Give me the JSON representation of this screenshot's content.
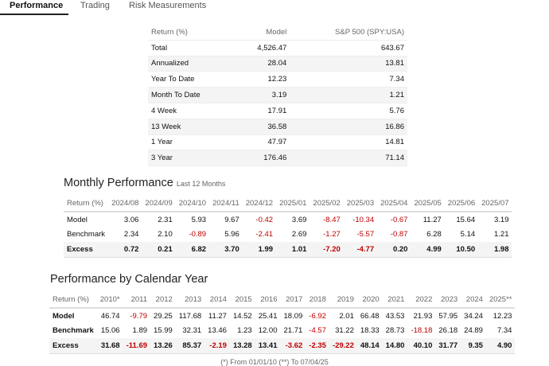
{
  "tabs": [
    "Performance",
    "Trading",
    "Risk Measurements"
  ],
  "summary": {
    "header": [
      "Return (%)",
      "Model",
      "S&P 500 (SPY:USA)"
    ],
    "rows": [
      [
        "Total",
        "4,526.47",
        "643.67"
      ],
      [
        "Annualized",
        "28.04",
        "13.81"
      ],
      [
        "Year To Date",
        "12.23",
        "7.34"
      ],
      [
        "Month To Date",
        "3.19",
        "1.21"
      ],
      [
        "4 Week",
        "17.91",
        "5.76"
      ],
      [
        "13 Week",
        "36.58",
        "16.86"
      ],
      [
        "1 Year",
        "47.97",
        "14.81"
      ],
      [
        "3 Year",
        "176.46",
        "71.14"
      ]
    ]
  },
  "monthly": {
    "title": "Monthly Performance",
    "subtitle": "Last 12 Months",
    "header": [
      "Return (%)",
      "2024/08",
      "2024/09",
      "2024/10",
      "2024/11",
      "2024/12",
      "2025/01",
      "2025/02",
      "2025/03",
      "2025/04",
      "2025/05",
      "2025/06",
      "2025/07"
    ],
    "rows": [
      [
        "Model",
        "3.06",
        "2.31",
        "5.93",
        "9.67",
        "-0.42",
        "3.69",
        "-8.47",
        "-10.34",
        "-0.67",
        "11.27",
        "15.64",
        "3.19"
      ],
      [
        "Benchmark",
        "2.34",
        "2.10",
        "-0.89",
        "5.96",
        "-2.41",
        "2.69",
        "-1.27",
        "-5.57",
        "-0.87",
        "6.28",
        "5.14",
        "1.21"
      ],
      [
        "Excess",
        "0.72",
        "0.21",
        "6.82",
        "3.70",
        "1.99",
        "1.01",
        "-7.20",
        "-4.77",
        "0.20",
        "4.99",
        "10.50",
        "1.98"
      ]
    ]
  },
  "calendar": {
    "title": "Performance by Calendar Year",
    "header": [
      "Return (%)",
      "2010*",
      "2011",
      "2012",
      "2013",
      "2014",
      "2015",
      "2016",
      "2017",
      "2018",
      "2019",
      "2020",
      "2021",
      "2022",
      "2023",
      "2024",
      "2025**"
    ],
    "rows": [
      [
        "Model",
        "46.74",
        "-9.79",
        "29.25",
        "117.68",
        "11.27",
        "14.52",
        "25.41",
        "18.09",
        "-6.92",
        "2.01",
        "66.48",
        "43.53",
        "21.93",
        "57.95",
        "34.24",
        "12.23"
      ],
      [
        "Benchmark",
        "15.06",
        "1.89",
        "15.99",
        "32.31",
        "13.46",
        "1.23",
        "12.00",
        "21.71",
        "-4.57",
        "31.22",
        "18.33",
        "28.73",
        "-18.18",
        "26.18",
        "24.89",
        "7.34"
      ],
      [
        "Excess",
        "31.68",
        "-11.69",
        "13.26",
        "85.37",
        "-2.19",
        "13.28",
        "13.41",
        "-3.62",
        "-2.35",
        "-29.22",
        "48.14",
        "14.80",
        "40.10",
        "31.77",
        "9.35",
        "4.90"
      ]
    ],
    "footnote": "(*) From 01/01/10 (**) To 07/04/25"
  }
}
